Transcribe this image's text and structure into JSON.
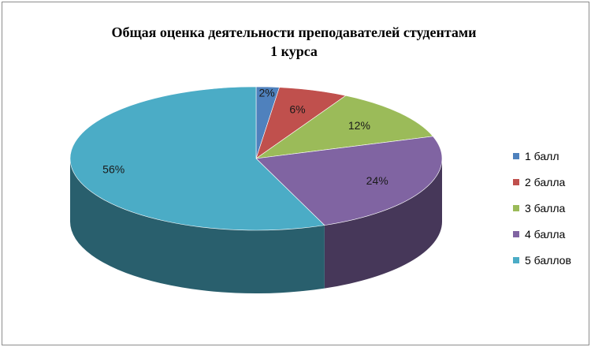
{
  "chart_data": {
    "type": "pie",
    "title_lines": [
      "Общая оценка деятельности преподавателей студентами",
      "1 курса"
    ],
    "categories": [
      "1 балл",
      "2 балла",
      "3 балла",
      "4 балла",
      "5 баллов"
    ],
    "values": [
      2,
      6,
      12,
      24,
      56
    ],
    "data_labels": [
      "2%",
      "6%",
      "12%",
      "24%",
      "56%"
    ],
    "colors": [
      "#4F81BD",
      "#C0504D",
      "#9BBB59",
      "#8064A2",
      "#4BACC6"
    ],
    "style": "3d",
    "legend_position": "right"
  }
}
